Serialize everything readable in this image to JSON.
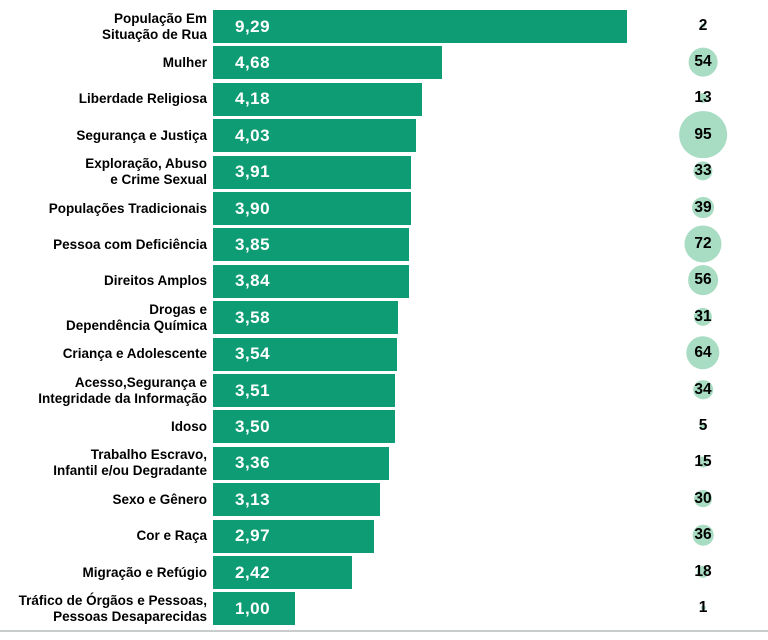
{
  "chart_data": {
    "type": "bar",
    "orientation": "horizontal",
    "title": "",
    "xlabel": "",
    "ylabel": "",
    "grid": false,
    "legend": false,
    "value_range": [
      0,
      9.29
    ],
    "categories": [
      "População Em Situação de Rua",
      "Mulher",
      "Liberdade Religiosa",
      "Segurança e Justiça",
      "Exploração, Abuso e Crime Sexual",
      "Populações Tradicionais",
      "Pessoa com Deficiência",
      "Direitos Amplos",
      "Drogas e Dependência Química",
      "Criança e Adolescente",
      "Acesso,Segurança e Integridade da Informação",
      "Idoso",
      "Trabalho Escravo, Infantil e/ou Degradante",
      "Sexo e Gênero",
      "Cor e Raça",
      "Migração e Refúgio",
      "Tráfico de Órgãos e Pessoas, Pessoas Desaparecidas"
    ],
    "series": [
      {
        "name": "bar-values",
        "values": [
          9.29,
          4.68,
          4.18,
          4.03,
          3.91,
          3.9,
          3.85,
          3.84,
          3.58,
          3.54,
          3.51,
          3.5,
          3.36,
          3.13,
          2.97,
          2.42,
          1.0
        ]
      },
      {
        "name": "bubble-counts",
        "values": [
          2,
          54,
          13,
          95,
          33,
          39,
          72,
          56,
          31,
          64,
          34,
          5,
          15,
          30,
          36,
          18,
          1
        ]
      }
    ],
    "rows": [
      {
        "label_lines": [
          "População Em",
          "Situação de Rua"
        ],
        "value": 9.29,
        "value_label": "9,29",
        "count": 2
      },
      {
        "label_lines": [
          "Mulher"
        ],
        "value": 4.68,
        "value_label": "4,68",
        "count": 54
      },
      {
        "label_lines": [
          "Liberdade Religiosa"
        ],
        "value": 4.18,
        "value_label": "4,18",
        "count": 13
      },
      {
        "label_lines": [
          "Segurança e Justiça"
        ],
        "value": 4.03,
        "value_label": "4,03",
        "count": 95
      },
      {
        "label_lines": [
          "Exploração, Abuso",
          "e Crime Sexual"
        ],
        "value": 3.91,
        "value_label": "3,91",
        "count": 33
      },
      {
        "label_lines": [
          "Populações Tradicionais"
        ],
        "value": 3.9,
        "value_label": "3,90",
        "count": 39
      },
      {
        "label_lines": [
          "Pessoa com Deficiência"
        ],
        "value": 3.85,
        "value_label": "3,85",
        "count": 72
      },
      {
        "label_lines": [
          "Direitos Amplos"
        ],
        "value": 3.84,
        "value_label": "3,84",
        "count": 56
      },
      {
        "label_lines": [
          "Drogas e",
          "Dependência Química"
        ],
        "value": 3.58,
        "value_label": "3,58",
        "count": 31
      },
      {
        "label_lines": [
          "Criança e Adolescente"
        ],
        "value": 3.54,
        "value_label": "3,54",
        "count": 64
      },
      {
        "label_lines": [
          "Acesso,Segurança e",
          "Integridade da Informação"
        ],
        "value": 3.51,
        "value_label": "3,51",
        "count": 34
      },
      {
        "label_lines": [
          "Idoso"
        ],
        "value": 3.5,
        "value_label": "3,50",
        "count": 5
      },
      {
        "label_lines": [
          "Trabalho Escravo,",
          "Infantil e/ou Degradante"
        ],
        "value": 3.36,
        "value_label": "3,36",
        "count": 15
      },
      {
        "label_lines": [
          "Sexo e Gênero"
        ],
        "value": 3.13,
        "value_label": "3,13",
        "count": 30
      },
      {
        "label_lines": [
          "Cor e Raça"
        ],
        "value": 2.97,
        "value_label": "2,97",
        "count": 36
      },
      {
        "label_lines": [
          "Migração e Refúgio"
        ],
        "value": 2.42,
        "value_label": "2,42",
        "count": 18
      },
      {
        "label_lines": [
          "Tráfico de Órgãos e Pessoas,",
          "Pessoas Desaparecidas"
        ],
        "value": 1.0,
        "value_label": "1,00",
        "count": 1
      }
    ],
    "colors": {
      "bar": "#0d9c74",
      "bar_value_text": "#ffffff",
      "bubble": "#a8dcc3",
      "count_text": "#000000",
      "label_text": "#000000",
      "baseline": "#c9cecd"
    }
  }
}
